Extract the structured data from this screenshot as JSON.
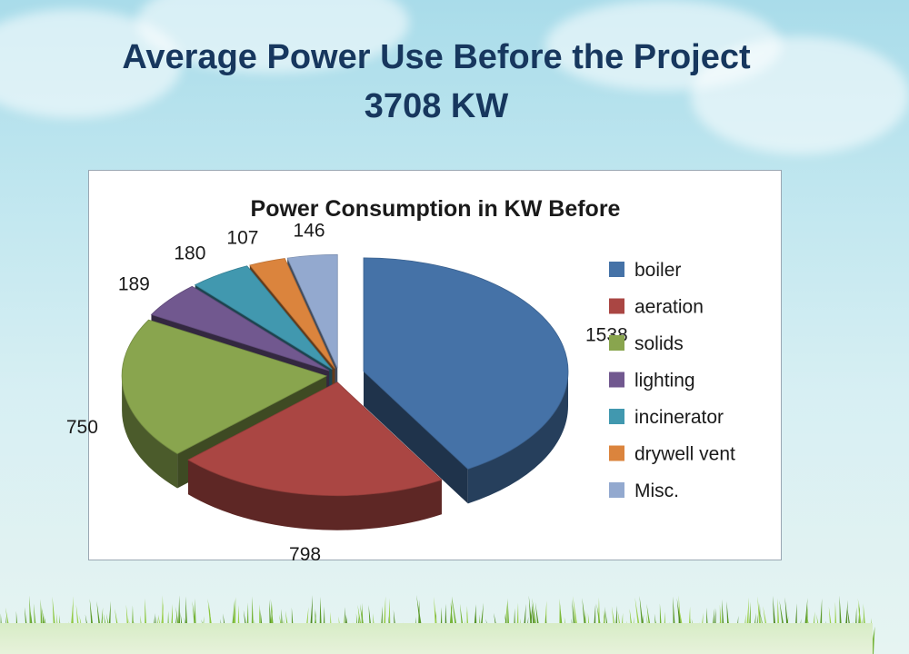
{
  "slide": {
    "title_line1": "Average Power Use Before the Project",
    "title_line2": "3708 KW"
  },
  "chart_data": {
    "type": "pie",
    "title": "Power Consumption in KW Before",
    "labels": [
      "boiler",
      "aeration",
      "solids",
      "lighting",
      "incinerator",
      "drywell vent",
      "Misc."
    ],
    "values": [
      1538,
      798,
      750,
      189,
      180,
      107,
      146
    ],
    "colors": [
      "#4572a7",
      "#aa4643",
      "#89a54e",
      "#71588f",
      "#4198af",
      "#db843d",
      "#93a9cf"
    ],
    "exploded": true,
    "three_d": true,
    "data_labels": true,
    "legend_position": "right"
  },
  "colors": {
    "title_text": "#17375e",
    "chart_text": "#1a1a1a"
  }
}
